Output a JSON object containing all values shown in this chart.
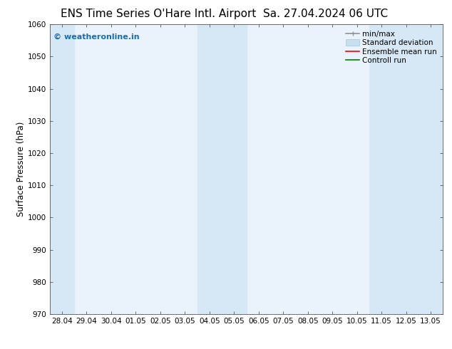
{
  "title_left": "ENS Time Series O'Hare Intl. Airport",
  "title_right": "Sa. 27.04.2024 06 UTC",
  "ylabel": "Surface Pressure (hPa)",
  "ylim": [
    970,
    1060
  ],
  "yticks": [
    970,
    980,
    990,
    1000,
    1010,
    1020,
    1030,
    1040,
    1050,
    1060
  ],
  "xtick_labels": [
    "28.04",
    "29.04",
    "30.04",
    "01.05",
    "02.05",
    "03.05",
    "04.05",
    "05.05",
    "06.05",
    "07.05",
    "08.05",
    "09.05",
    "10.05",
    "11.05",
    "12.05",
    "13.05"
  ],
  "shaded_bands": [
    {
      "xmin": -0.5,
      "xmax": 0.5
    },
    {
      "xmin": 5.5,
      "xmax": 7.5
    },
    {
      "xmin": 12.5,
      "xmax": 15.5
    }
  ],
  "band_color": "#d6e8f5",
  "plot_bg_color": "#eaf3fb",
  "fig_bg_color": "#ffffff",
  "watermark_text": "© weatheronline.in",
  "watermark_color": "#1a6faf",
  "legend_labels": [
    "min/max",
    "Standard deviation",
    "Ensemble mean run",
    "Controll run"
  ],
  "minmax_color": "#909090",
  "std_facecolor": "#c8dff0",
  "std_edgecolor": "#a0c8e0",
  "ensemble_color": "#ff0000",
  "control_color": "#008000",
  "title_fontsize": 11,
  "tick_fontsize": 7.5,
  "ylabel_fontsize": 8.5,
  "legend_fontsize": 7.5,
  "watermark_fontsize": 8
}
